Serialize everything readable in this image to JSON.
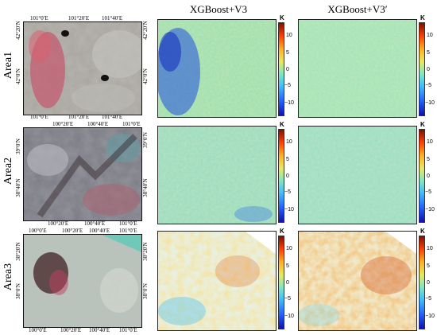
{
  "columns": {
    "col2_title": "XGBoost+V3",
    "col3_title": "XGBoost+V3′"
  },
  "rows": [
    {
      "label": "Area1",
      "top_ticks": [
        "101°0′E",
        "101°20′E",
        "101°40′E"
      ],
      "bottom_ticks": [
        "101°0′E",
        "101°20′E",
        "101°40′E"
      ],
      "left_ticks": [
        "42°20′N",
        "42°0′N"
      ],
      "right_ticks": [
        "42°20′N",
        "42°0′N"
      ]
    },
    {
      "label": "Area2",
      "top_ticks": [
        "100°20′E",
        "100°40′E",
        "101°0′E"
      ],
      "bottom_ticks": [
        "100°20′E",
        "100°40′E",
        "101°0′E"
      ],
      "left_ticks": [
        "39°0′N",
        "38°40′N"
      ],
      "right_ticks": [
        "39°0′N",
        "38°40′N"
      ]
    },
    {
      "label": "Area3",
      "top_ticks": [
        "100°0′E",
        "100°20′E",
        "100°40′E",
        "101°0′E"
      ],
      "bottom_ticks": [
        "100°0′E",
        "100°20′E",
        "100°40′E",
        "101°0′E"
      ],
      "left_ticks": [
        "38°20′N",
        "38°0′N"
      ],
      "right_ticks": [
        "38°20′N",
        "38°0′N"
      ]
    }
  ],
  "colorbar": {
    "unit": "K",
    "ticks": [
      "10",
      "5",
      "0",
      "−5",
      "−10"
    ]
  }
}
